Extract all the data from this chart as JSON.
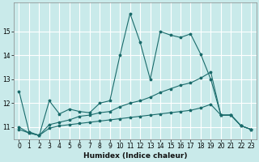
{
  "title": "",
  "xlabel": "Humidex (Indice chaleur)",
  "ylabel": "",
  "background_color": "#c9eaea",
  "grid_color": "#ffffff",
  "line_color": "#1a6b6b",
  "xlim": [
    -0.5,
    23.5
  ],
  "ylim": [
    10.5,
    16.2
  ],
  "yticks": [
    11,
    12,
    13,
    14,
    15
  ],
  "xticks": [
    0,
    1,
    2,
    3,
    4,
    5,
    6,
    7,
    8,
    9,
    10,
    11,
    12,
    13,
    14,
    15,
    16,
    17,
    18,
    19,
    20,
    21,
    22,
    23
  ],
  "series": [
    {
      "x": [
        0,
        1,
        2,
        3,
        4,
        5,
        6,
        7,
        8,
        9,
        10,
        11,
        12,
        13,
        14,
        15,
        16,
        17,
        18,
        19,
        20,
        21,
        22,
        23
      ],
      "y": [
        12.5,
        10.8,
        10.65,
        12.1,
        11.55,
        11.75,
        11.65,
        11.6,
        12.0,
        12.1,
        14.0,
        15.75,
        14.55,
        13.0,
        15.0,
        14.85,
        14.75,
        14.9,
        14.05,
        13.0,
        11.5,
        11.5,
        11.05,
        10.9
      ]
    },
    {
      "x": [
        0,
        1,
        2,
        3,
        4,
        5,
        6,
        7,
        8,
        9,
        10,
        11,
        12,
        13,
        14,
        15,
        16,
        17,
        18,
        19,
        20,
        21,
        22,
        23
      ],
      "y": [
        11.0,
        10.75,
        10.65,
        11.1,
        11.2,
        11.3,
        11.45,
        11.5,
        11.6,
        11.65,
        11.85,
        12.0,
        12.1,
        12.25,
        12.45,
        12.6,
        12.75,
        12.85,
        13.05,
        13.3,
        11.5,
        11.5,
        11.05,
        10.9
      ]
    },
    {
      "x": [
        0,
        1,
        2,
        3,
        4,
        5,
        6,
        7,
        8,
        9,
        10,
        11,
        12,
        13,
        14,
        15,
        16,
        17,
        18,
        19,
        20,
        21,
        22,
        23
      ],
      "y": [
        10.9,
        10.75,
        10.65,
        10.95,
        11.05,
        11.1,
        11.15,
        11.2,
        11.25,
        11.3,
        11.35,
        11.4,
        11.45,
        11.5,
        11.55,
        11.6,
        11.65,
        11.7,
        11.8,
        11.95,
        11.5,
        11.5,
        11.05,
        10.9
      ]
    }
  ]
}
